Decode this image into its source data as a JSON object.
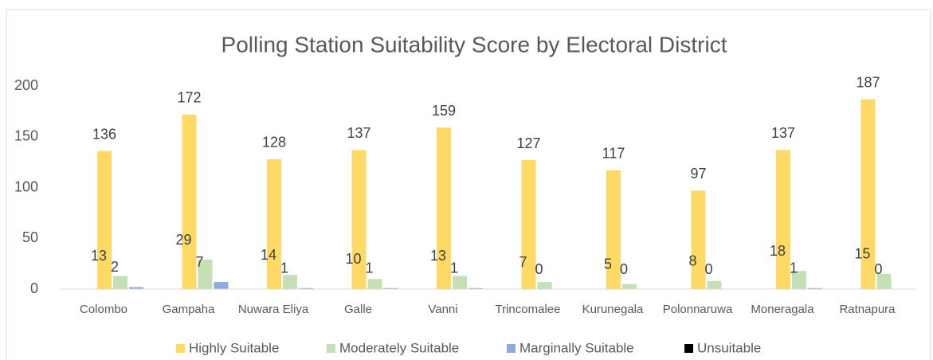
{
  "chart_data": {
    "type": "bar",
    "title": "Polling Station Suitability Score by Electoral District",
    "categories": [
      "Colombo",
      "Gampaha",
      "Nuwara Eliya",
      "Galle",
      "Vanni",
      "Trincomalee",
      "Kurunegala",
      "Polonnaruwa",
      "Moneragala",
      "Ratnapura"
    ],
    "series": [
      {
        "name": "Highly Suitable",
        "color": "#ffd966",
        "data_labels": true,
        "values": [
          136,
          172,
          128,
          137,
          159,
          127,
          117,
          97,
          137,
          187
        ]
      },
      {
        "name": "Moderately Suitable",
        "color": "#c5e0b4",
        "data_labels": true,
        "values": [
          13,
          29,
          14,
          10,
          13,
          7,
          5,
          8,
          18,
          15
        ]
      },
      {
        "name": "Marginally Suitable",
        "color": "#8faadc",
        "data_labels": true,
        "values": [
          2,
          7,
          1,
          1,
          1,
          0,
          0,
          0,
          1,
          0
        ]
      },
      {
        "name": "Unsuitable",
        "color": "#000000",
        "data_labels": false,
        "values": [
          0,
          0,
          0,
          0,
          0,
          0,
          0,
          0,
          0,
          0
        ]
      }
    ],
    "ylim": [
      0,
      200
    ],
    "yticks": [
      0,
      50,
      100,
      150,
      200
    ],
    "grid": false,
    "legend": "bottom"
  }
}
